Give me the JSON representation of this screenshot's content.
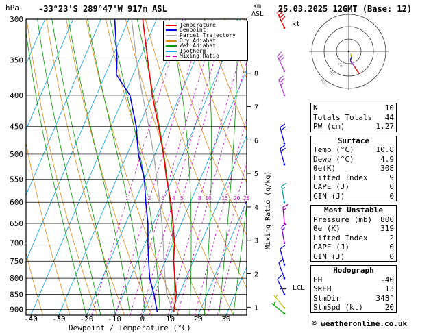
{
  "header": {
    "location_title": "-33°23'S 289°47'W 917m ASL",
    "datetime_title": "25.03.2025 12GMT (Base: 12)",
    "pressure_axis_unit": "hPa",
    "altitude_axis_unit": "km",
    "altitude_axis_unit2": "ASL"
  },
  "legend": {
    "items": [
      {
        "label": "Temperature",
        "color": "#ee0000",
        "style": "solid"
      },
      {
        "label": "Dewpoint",
        "color": "#0000e0",
        "style": "solid"
      },
      {
        "label": "Parcel Trajectory",
        "color": "#a8a8a8",
        "style": "solid"
      },
      {
        "label": "Dry Adiabat",
        "color": "#e08818",
        "style": "solid"
      },
      {
        "label": "Wet Adiabat",
        "color": "#009900",
        "style": "solid"
      },
      {
        "label": "Isotherm",
        "color": "#00a0e0",
        "style": "solid"
      },
      {
        "label": "Mixing Ratio",
        "color": "#c800c8",
        "style": "dashed"
      }
    ]
  },
  "axes": {
    "pressure_ticks": [
      300,
      350,
      400,
      450,
      500,
      550,
      600,
      650,
      700,
      750,
      800,
      850,
      900
    ],
    "temperature_ticks": [
      -40,
      -30,
      -20,
      -10,
      0,
      10,
      20,
      30
    ],
    "km_ticks": [
      1,
      2,
      3,
      4,
      5,
      6,
      7,
      8
    ],
    "xlabel": "Dewpoint / Temperature (°C)",
    "mixing_ratio_label": "Mixing Ratio (g/kg)",
    "lcl_label": "LCL"
  },
  "chart_data": {
    "type": "skewt-log-p",
    "pressure_range_hpa": [
      300,
      920
    ],
    "temp_axis_range_c": [
      -40,
      30
    ],
    "isotherm_step_c": 10,
    "mixing_ratio_lines_gkg": [
      1,
      2,
      3,
      4,
      5,
      8,
      10,
      15,
      20,
      25
    ],
    "lcl_pressure_hpa": 833,
    "colors": {
      "temperature": "#ee0000",
      "dewpoint": "#0000e0",
      "parcel": "#a8a8a8",
      "dry_adiabat": "#e08818",
      "wet_adiabat": "#009900",
      "isotherm": "#00a0e0",
      "mixing_ratio": "#c800c8",
      "grid": "#000000"
    },
    "profiles": {
      "temperature_p_t": [
        [
          910,
          10.8
        ],
        [
          850,
          9
        ],
        [
          800,
          6
        ],
        [
          750,
          3
        ],
        [
          700,
          0.5
        ],
        [
          650,
          -3
        ],
        [
          600,
          -7
        ],
        [
          550,
          -12
        ],
        [
          500,
          -17
        ],
        [
          450,
          -23
        ],
        [
          400,
          -30
        ],
        [
          350,
          -37
        ],
        [
          300,
          -45
        ]
      ],
      "dewpoint_p_t": [
        [
          910,
          4.9
        ],
        [
          850,
          1
        ],
        [
          800,
          -3
        ],
        [
          750,
          -6
        ],
        [
          700,
          -9
        ],
        [
          650,
          -12
        ],
        [
          600,
          -16
        ],
        [
          550,
          -20
        ],
        [
          500,
          -26
        ],
        [
          450,
          -31
        ],
        [
          400,
          -38
        ],
        [
          370,
          -46
        ],
        [
          350,
          -48
        ],
        [
          300,
          -55
        ]
      ],
      "parcel_p_t": [
        [
          910,
          10.8
        ],
        [
          850,
          5.5
        ],
        [
          833,
          4.5
        ],
        [
          800,
          2.5
        ],
        [
          750,
          -0.5
        ],
        [
          700,
          -3.5
        ],
        [
          650,
          -7
        ],
        [
          600,
          -11
        ],
        [
          550,
          -15.5
        ],
        [
          500,
          -20.5
        ],
        [
          450,
          -26.5
        ],
        [
          400,
          -33.5
        ],
        [
          350,
          -41
        ],
        [
          300,
          -49
        ]
      ]
    },
    "winds": [
      {
        "p": 310,
        "dir": 335,
        "spd": 40,
        "color": "#ee0000"
      },
      {
        "p": 365,
        "dir": 335,
        "spd": 30,
        "color": "#b040cc"
      },
      {
        "p": 400,
        "dir": 340,
        "spd": 25,
        "color": "#b040cc"
      },
      {
        "p": 480,
        "dir": 345,
        "spd": 20,
        "color": "#0000ee"
      },
      {
        "p": 520,
        "dir": 345,
        "spd": 20,
        "color": "#0000ee"
      },
      {
        "p": 600,
        "dir": 350,
        "spd": 15,
        "color": "#009999"
      },
      {
        "p": 650,
        "dir": 355,
        "spd": 15,
        "color": "#aa00aa"
      },
      {
        "p": 700,
        "dir": 350,
        "spd": 15,
        "color": "#7700cc"
      },
      {
        "p": 760,
        "dir": 345,
        "spd": 10,
        "color": "#0000ee"
      },
      {
        "p": 800,
        "dir": 340,
        "spd": 10,
        "color": "#0000ee"
      },
      {
        "p": 850,
        "dir": 335,
        "spd": 10,
        "color": "#0000ee"
      },
      {
        "p": 895,
        "dir": 320,
        "spd": 5,
        "color": "#bbbb00"
      },
      {
        "p": 915,
        "dir": 310,
        "spd": 5,
        "color": "#00aa00"
      }
    ]
  },
  "hodograph": {
    "unit_label": "kt",
    "rings_kt": [
      20,
      40,
      60
    ],
    "trace_kt_uv": [
      [
        3.2,
        -3.8
      ],
      [
        4.2,
        -9.1
      ],
      [
        2.6,
        -14.8
      ],
      [
        5.2,
        -19.3
      ],
      [
        8.6,
        -23.5
      ],
      [
        16.9,
        -36.3
      ]
    ],
    "trace_colors": [
      "#bbbb00",
      "#0000ee",
      "#7700cc",
      "#b040cc",
      "#ee0000"
    ]
  },
  "tables": [
    {
      "title": "",
      "rows": [
        [
          "K",
          "10"
        ],
        [
          "Totals Totals",
          "44"
        ],
        [
          "PW (cm)",
          "1.27"
        ]
      ]
    },
    {
      "title": "Surface",
      "rows": [
        [
          "Temp (°C)",
          "10.8"
        ],
        [
          "Dewp (°C)",
          "4.9"
        ],
        [
          "θe(K)",
          "308"
        ],
        [
          "Lifted Index",
          "9"
        ],
        [
          "CAPE (J)",
          "0"
        ],
        [
          "CIN (J)",
          "0"
        ]
      ]
    },
    {
      "title": "Most Unstable",
      "rows": [
        [
          "Pressure (mb)",
          "800"
        ],
        [
          "θe (K)",
          "319"
        ],
        [
          "Lifted Index",
          "2"
        ],
        [
          "CAPE (J)",
          "0"
        ],
        [
          "CIN (J)",
          "0"
        ]
      ]
    },
    {
      "title": "Hodograph",
      "rows": [
        [
          "EH",
          "-40"
        ],
        [
          "SREH",
          "13"
        ],
        [
          "StmDir",
          "348°"
        ],
        [
          "StmSpd (kt)",
          "20"
        ]
      ]
    }
  ],
  "footer": {
    "copyright": "© weatheronline.co.uk"
  }
}
